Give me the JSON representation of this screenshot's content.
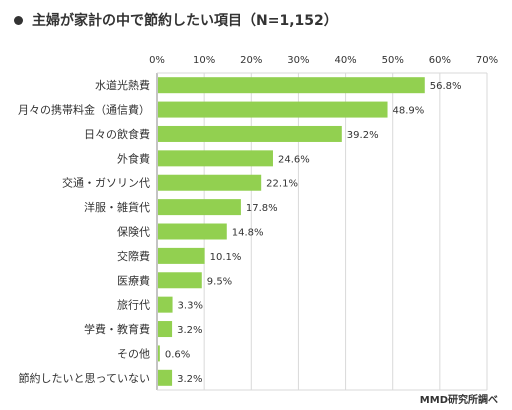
{
  "title": "主婦が家計の中で節約したい項目（N=1,152）",
  "source": "MMD研究所調べ",
  "chart_data": {
    "type": "bar",
    "orientation": "horizontal",
    "title": "主婦が家計の中で節約したい項目（N=1,152）",
    "categories": [
      "水道光熱費",
      "月々の携帯料金（通信費）",
      "日々の飲食費",
      "外食費",
      "交通・ガソリン代",
      "洋服・雑貨代",
      "保険代",
      "交際費",
      "医療費",
      "旅行代",
      "学費・教育費",
      "その他",
      "節約したいと思っていない"
    ],
    "values": [
      56.8,
      48.9,
      39.2,
      24.6,
      22.1,
      17.8,
      14.8,
      10.1,
      9.5,
      3.3,
      3.2,
      0.6,
      3.2
    ],
    "value_labels": [
      "56.8%",
      "48.9%",
      "39.2%",
      "24.6%",
      "22.1%",
      "17.8%",
      "14.8%",
      "10.1%",
      "9.5%",
      "3.3%",
      "3.2%",
      "0.6%",
      "3.2%"
    ],
    "x_ticks": [
      "0%",
      "10%",
      "20%",
      "30%",
      "40%",
      "50%",
      "60%",
      "70%"
    ],
    "xlim": [
      0,
      70
    ],
    "xlabel": "",
    "ylabel": "",
    "grid": true,
    "bar_color": "#92d050"
  }
}
